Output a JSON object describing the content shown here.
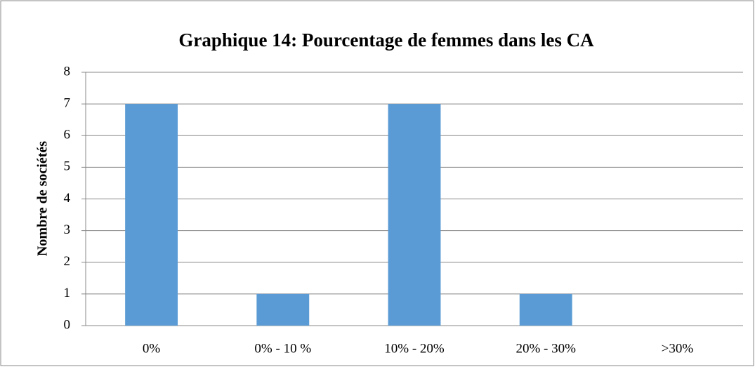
{
  "chart_data": {
    "type": "bar",
    "title": "Graphique 14: Pourcentage de femmes dans les CA",
    "y_label": "Nombre de sociétés",
    "categories": [
      "0%",
      "0% - 10 %",
      "10% - 20%",
      "20% - 30%",
      ">30%"
    ],
    "values": [
      7,
      1,
      7,
      1,
      0
    ],
    "color": "#5b9bd5",
    "ylim": [
      0,
      8
    ],
    "yticks": [
      0,
      1,
      2,
      3,
      4,
      5,
      6,
      7,
      8
    ],
    "grid": true
  }
}
